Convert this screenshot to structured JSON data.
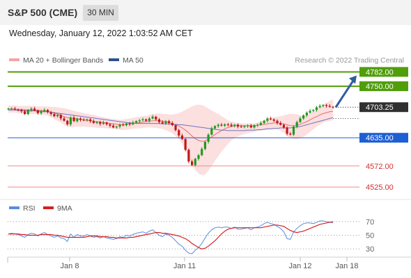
{
  "header": {
    "instrument": "S&P 500 (CME)",
    "timeframe": "30 MIN",
    "datetime": "Wednesday, January 12, 2022 1:03:52 AM CET"
  },
  "colors": {
    "resistance": "#4f9e0a",
    "support": "#1e5fd3",
    "minor_support": "#f08a8a",
    "current_price_bg": "#303030",
    "arrow": "#2e5d9e",
    "bollinger_fill": "#fbd4d4",
    "ma20": "#e07070",
    "ma50": "#6f73c0",
    "rsi": "#5b8bdf",
    "rsi_ma": "#d42020",
    "candle_up": "#1f9a1f",
    "candle_down": "#c01818"
  },
  "chart_data": [
    {
      "type": "candlestick",
      "title": "",
      "legend": [
        {
          "label": "MA 20 + Bollinger Bands",
          "color": "#f5a3a3"
        },
        {
          "label": "MA 50",
          "color": "#2f4f8f"
        }
      ],
      "legend_position": "top-left",
      "watermark": "Research © 2022 Trading Central",
      "x_ticks": [
        "Jan 8",
        "Jan 11",
        "Jan 12",
        "Jan 18"
      ],
      "ylim": [
        4505,
        4792
      ],
      "current_price": "4703.25",
      "levels": [
        {
          "label": "4782.00",
          "value": 4782,
          "kind": "resistance"
        },
        {
          "label": "4750.00",
          "value": 4750,
          "kind": "resistance"
        },
        {
          "label": "4635.00",
          "value": 4635,
          "kind": "support"
        },
        {
          "label": "4572.00",
          "value": 4572,
          "kind": "minor_support"
        },
        {
          "label": "4525.00",
          "value": 4525,
          "kind": "minor_support"
        }
      ],
      "projection": {
        "from_price": 4703,
        "to_price": 4774,
        "direction": "up"
      },
      "close": [
        4700,
        4700,
        4698,
        4697,
        4694,
        4688,
        4697,
        4700,
        4696,
        4690,
        4694,
        4697,
        4692,
        4688,
        4683,
        4686,
        4678,
        4673,
        4665,
        4680,
        4672,
        4678,
        4675,
        4674,
        4676,
        4672,
        4668,
        4670,
        4666,
        4669,
        4665,
        4662,
        4658,
        4660,
        4664,
        4663,
        4667,
        4665,
        4669,
        4672,
        4674,
        4676,
        4673,
        4678,
        4682,
        4676,
        4670,
        4667,
        4672,
        4668,
        4663,
        4652,
        4640,
        4632,
        4608,
        4582,
        4574,
        4588,
        4596,
        4610,
        4626,
        4642,
        4656,
        4661,
        4664,
        4662,
        4665,
        4664,
        4661,
        4664,
        4660,
        4659,
        4661,
        4662,
        4658,
        4663,
        4664,
        4668,
        4673,
        4678,
        4676,
        4673,
        4668,
        4664,
        4658,
        4644,
        4642,
        4660,
        4670,
        4678,
        4685,
        4691,
        4695,
        4697,
        4703,
        4706,
        4708,
        4706,
        4704,
        4703
      ],
      "bb_mid": [
        4699,
        4699,
        4699,
        4698,
        4698,
        4697,
        4697,
        4697,
        4697,
        4696,
        4696,
        4695,
        4694,
        4692,
        4690,
        4688,
        4685,
        4682,
        4680,
        4679,
        4678,
        4677,
        4676,
        4675,
        4674,
        4673,
        4672,
        4671,
        4670,
        4669,
        4668,
        4667,
        4666,
        4665,
        4664,
        4664,
        4665,
        4666,
        4667,
        4668,
        4669,
        4670,
        4671,
        4672,
        4673,
        4673,
        4673,
        4672,
        4671,
        4669,
        4667,
        4664,
        4661,
        4657,
        4652,
        4646,
        4639,
        4633,
        4629,
        4627,
        4628,
        4632,
        4637,
        4642,
        4647,
        4651,
        4655,
        4658,
        4660,
        4662,
        4662,
        4662,
        4662,
        4662,
        4662,
        4662,
        4663,
        4664,
        4665,
        4666,
        4667,
        4668,
        4668,
        4667,
        4666,
        4664,
        4662,
        4662,
        4663,
        4665,
        4668,
        4671,
        4675,
        4679,
        4682,
        4686,
        4689,
        4691,
        4693,
        4694
      ],
      "bb_upper": [
        4707,
        4707,
        4707,
        4706,
        4706,
        4706,
        4706,
        4706,
        4706,
        4705,
        4705,
        4705,
        4705,
        4704,
        4704,
        4703,
        4702,
        4701,
        4699,
        4697,
        4695,
        4693,
        4692,
        4690,
        4689,
        4687,
        4686,
        4684,
        4682,
        4681,
        4679,
        4678,
        4677,
        4676,
        4675,
        4676,
        4677,
        4678,
        4679,
        4681,
        4682,
        4683,
        4684,
        4686,
        4688,
        4689,
        4689,
        4688,
        4688,
        4687,
        4687,
        4688,
        4690,
        4693,
        4697,
        4701,
        4705,
        4708,
        4709,
        4708,
        4705,
        4700,
        4696,
        4692,
        4688,
        4683,
        4679,
        4674,
        4671,
        4669,
        4668,
        4667,
        4667,
        4667,
        4667,
        4667,
        4669,
        4671,
        4674,
        4677,
        4680,
        4681,
        4682,
        4683,
        4685,
        4687,
        4689,
        4688,
        4687,
        4685,
        4684,
        4686,
        4690,
        4694,
        4699,
        4704,
        4709,
        4713,
        4717,
        4721
      ],
      "bb_lower": [
        4691,
        4691,
        4691,
        4690,
        4690,
        4689,
        4688,
        4688,
        4688,
        4687,
        4687,
        4686,
        4684,
        4681,
        4677,
        4673,
        4669,
        4664,
        4660,
        4659,
        4659,
        4660,
        4660,
        4660,
        4659,
        4659,
        4658,
        4657,
        4657,
        4657,
        4656,
        4656,
        4655,
        4654,
        4653,
        4652,
        4653,
        4654,
        4655,
        4656,
        4656,
        4657,
        4658,
        4658,
        4658,
        4657,
        4656,
        4655,
        4652,
        4649,
        4645,
        4639,
        4632,
        4621,
        4607,
        4591,
        4576,
        4563,
        4555,
        4552,
        4553,
        4561,
        4572,
        4583,
        4594,
        4604,
        4613,
        4621,
        4629,
        4635,
        4638,
        4641,
        4643,
        4645,
        4647,
        4648,
        4650,
        4651,
        4652,
        4653,
        4653,
        4654,
        4654,
        4651,
        4646,
        4640,
        4634,
        4632,
        4632,
        4634,
        4637,
        4642,
        4648,
        4654,
        4660,
        4665,
        4669,
        4671,
        4673,
        4674
      ],
      "ma50": [
        4697,
        4697,
        4697,
        4696,
        4696,
        4696,
        4695,
        4695,
        4695,
        4694,
        4694,
        4693,
        4693,
        4692,
        4691,
        4690,
        4689,
        4688,
        4687,
        4686,
        4685,
        4684,
        4683,
        4682,
        4681,
        4680,
        4679,
        4678,
        4677,
        4676,
        4675,
        4674,
        4673,
        4672,
        4671,
        4670,
        4669,
        4668,
        4668,
        4667,
        4667,
        4667,
        4667,
        4667,
        4667,
        4667,
        4667,
        4666,
        4666,
        4666,
        4665,
        4665,
        4664,
        4664,
        4663,
        4662,
        4661,
        4660,
        4659,
        4658,
        4657,
        4656,
        4655,
        4654,
        4653,
        4652,
        4652,
        4651,
        4651,
        4651,
        4651,
        4651,
        4651,
        4652,
        4652,
        4652,
        4653,
        4653,
        4654,
        4655,
        4655,
        4656,
        4656,
        4657,
        4657,
        4657,
        4657,
        4658,
        4659,
        4660,
        4662,
        4664,
        4666,
        4668,
        4670,
        4672,
        4674,
        4676,
        4678,
        4680
      ]
    },
    {
      "type": "line",
      "title": "",
      "legend": [
        {
          "label": "RSI",
          "color": "#5b8bdf"
        },
        {
          "label": "9MA",
          "color": "#d42020"
        }
      ],
      "legend_position": "top-left",
      "y_ticks": [
        70,
        50,
        30
      ],
      "ylim": [
        20,
        78
      ],
      "rsi": [
        52,
        53,
        52,
        51,
        49,
        47,
        51,
        53,
        52,
        49,
        52,
        54,
        51,
        49,
        47,
        49,
        46,
        45,
        41,
        52,
        47,
        51,
        49,
        49,
        51,
        49,
        47,
        48,
        46,
        48,
        46,
        45,
        44,
        45,
        48,
        47,
        50,
        49,
        51,
        53,
        54,
        55,
        53,
        56,
        58,
        54,
        50,
        48,
        52,
        50,
        47,
        42,
        37,
        34,
        28,
        24,
        23,
        28,
        32,
        38,
        46,
        53,
        58,
        61,
        62,
        61,
        62,
        62,
        60,
        62,
        59,
        59,
        60,
        61,
        58,
        61,
        62,
        64,
        67,
        69,
        67,
        66,
        63,
        60,
        55,
        45,
        44,
        55,
        60,
        64,
        67,
        68,
        68,
        67,
        69,
        71,
        71,
        70,
        69,
        68
      ],
      "rsi_ma": [
        52,
        52,
        52,
        52,
        51,
        51,
        50,
        50,
        50,
        50,
        51,
        51,
        51,
        51,
        50,
        50,
        49,
        48,
        47,
        47,
        47,
        47,
        47,
        47,
        48,
        49,
        49,
        49,
        48,
        48,
        48,
        47,
        47,
        46,
        46,
        46,
        46,
        47,
        47,
        48,
        49,
        50,
        51,
        52,
        53,
        54,
        54,
        53,
        53,
        52,
        51,
        50,
        49,
        47,
        45,
        42,
        38,
        35,
        32,
        30,
        31,
        34,
        38,
        42,
        47,
        52,
        56,
        59,
        60,
        61,
        61,
        61,
        61,
        61,
        61,
        61,
        61,
        61,
        62,
        63,
        64,
        65,
        65,
        64,
        63,
        60,
        57,
        55,
        54,
        55,
        56,
        58,
        60,
        62,
        64,
        66,
        67,
        68,
        69,
        70
      ]
    }
  ]
}
